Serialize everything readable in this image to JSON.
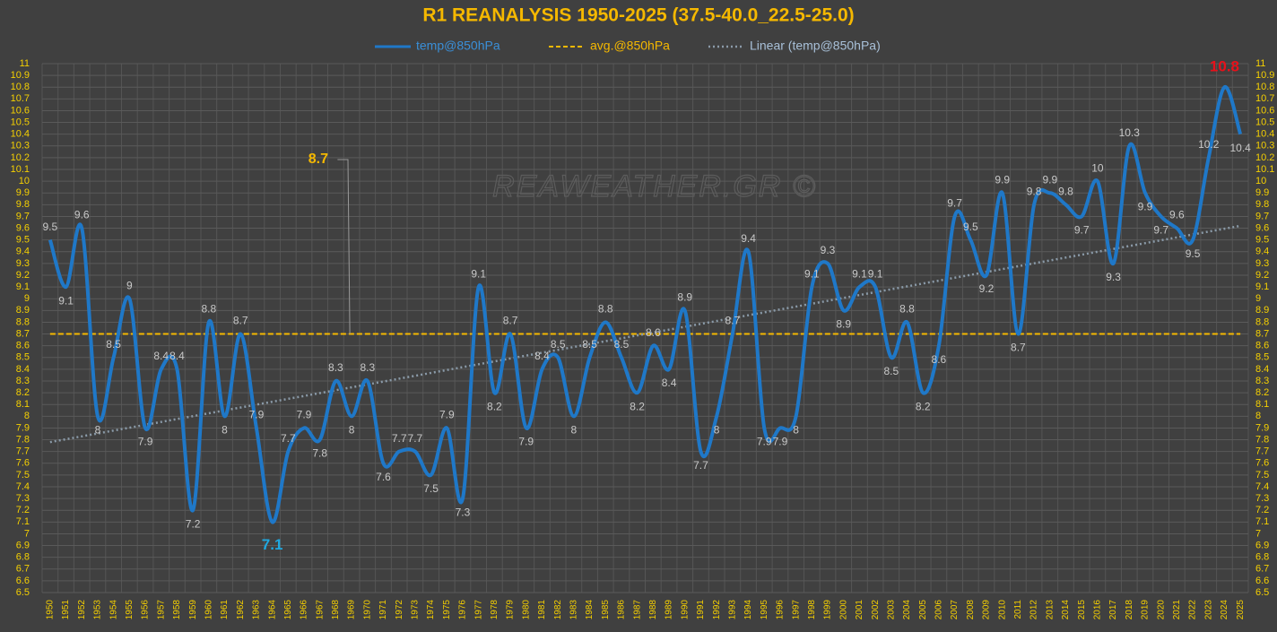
{
  "chart_data": {
    "type": "line",
    "title": "R1  REANALYSIS  1950-2025   (37.5-40.0_22.5-25.0)",
    "watermark": "REAWEATHER.GR ©",
    "categories": [
      "1950",
      "1951",
      "1952",
      "1953",
      "1954",
      "1955",
      "1956",
      "1957",
      "1958",
      "1959",
      "1960",
      "1961",
      "1962",
      "1963",
      "1964",
      "1965",
      "1966",
      "1967",
      "1968",
      "1969",
      "1970",
      "1971",
      "1972",
      "1973",
      "1974",
      "1975",
      "1976",
      "1977",
      "1978",
      "1979",
      "1980",
      "1981",
      "1982",
      "1983",
      "1984",
      "1985",
      "1986",
      "1987",
      "1988",
      "1989",
      "1990",
      "1991",
      "1992",
      "1993",
      "1994",
      "1995",
      "1996",
      "1997",
      "1998",
      "1999",
      "2000",
      "2001",
      "2002",
      "2003",
      "2004",
      "2005",
      "2006",
      "2007",
      "2008",
      "2009",
      "2010",
      "2011",
      "2012",
      "2013",
      "2014",
      "2015",
      "2016",
      "2017",
      "2018",
      "2019",
      "2020",
      "2021",
      "2022",
      "2023",
      "2024",
      "2025"
    ],
    "series": [
      {
        "name": "temp@850hPa",
        "color": "#1f78c8",
        "values": [
          9.5,
          9.1,
          9.6,
          8,
          8.5,
          9,
          7.9,
          8.4,
          8.4,
          7.2,
          8.8,
          8,
          8.7,
          7.9,
          7.1,
          7.7,
          7.9,
          7.8,
          8.3,
          8,
          8.3,
          7.6,
          7.7,
          7.7,
          7.5,
          7.9,
          7.3,
          9.1,
          8.2,
          8.7,
          7.9,
          8.4,
          8.5,
          8,
          8.5,
          8.8,
          8.5,
          8.2,
          8.6,
          8.4,
          8.9,
          7.7,
          8,
          8.7,
          9.4,
          7.9,
          7.9,
          8,
          9.1,
          9.3,
          8.9,
          9.1,
          9.1,
          8.5,
          8.8,
          8.2,
          8.6,
          9.7,
          9.5,
          9.2,
          9.9,
          8.7,
          9.8,
          9.9,
          9.8,
          9.7,
          10,
          9.3,
          10.3,
          9.9,
          9.7,
          9.6,
          9.5,
          10.2,
          10.8,
          10.4
        ]
      }
    ],
    "average": {
      "name": "avg.@850hPa",
      "color": "#f5b800",
      "value": 8.7
    },
    "trend": {
      "name": "Linear (temp@850hPa)",
      "color": "#8a9aa8",
      "start": 7.78,
      "end": 9.62
    },
    "max_color": "#e8101a",
    "min_color": "#1fa8e0",
    "ylim": [
      6.5,
      11
    ],
    "yticks": [
      6.5,
      6.6,
      6.7,
      6.8,
      6.9,
      7,
      7.1,
      7.2,
      7.3,
      7.4,
      7.5,
      7.6,
      7.7,
      7.8,
      7.9,
      8,
      8.1,
      8.2,
      8.3,
      8.4,
      8.5,
      8.6,
      8.7,
      8.8,
      8.9,
      9,
      9.1,
      9.2,
      9.3,
      9.4,
      9.5,
      9.6,
      9.7,
      9.8,
      9.9,
      10,
      10.1,
      10.2,
      10.3,
      10.4,
      10.5,
      10.6,
      10.7,
      10.8,
      10.9,
      11
    ],
    "grid": true
  }
}
